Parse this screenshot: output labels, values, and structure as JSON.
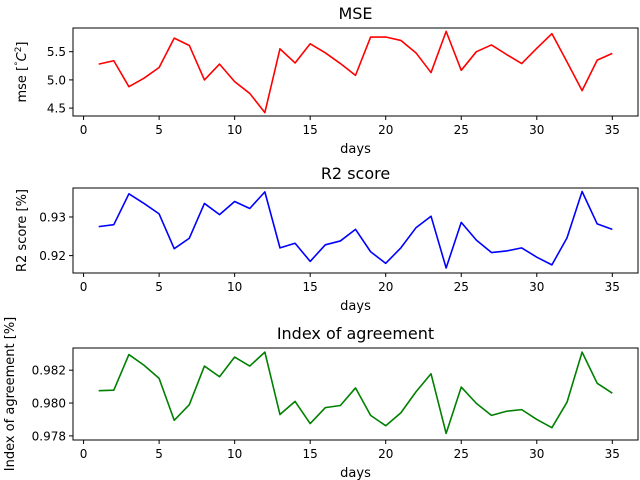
{
  "chart_data": [
    {
      "type": "line",
      "title": "MSE",
      "xlabel": "days",
      "ylabel": "mse [$^\\circ C^2$]",
      "ylabel_parts": {
        "text": "mse [",
        "degree": "°",
        "symbol": "C",
        "power": "2",
        "close": "]"
      },
      "color": "#ff0000",
      "xlim": [
        -0.7,
        36.7
      ],
      "ylim": [
        4.36,
        5.92
      ],
      "xticks": [
        0,
        5,
        10,
        15,
        20,
        25,
        30,
        35
      ],
      "yticks": [
        4.5,
        5.0,
        5.5
      ],
      "ytick_labels": [
        "4.5",
        "5.0",
        "5.5"
      ],
      "x": [
        1,
        2,
        3,
        4,
        5,
        6,
        7,
        8,
        9,
        10,
        11,
        12,
        13,
        14,
        15,
        16,
        17,
        18,
        19,
        20,
        21,
        22,
        23,
        24,
        25,
        26,
        27,
        28,
        29,
        30,
        31,
        32,
        33,
        34,
        35
      ],
      "values": [
        5.28,
        5.34,
        4.88,
        5.03,
        5.22,
        5.74,
        5.61,
        5.0,
        5.28,
        4.97,
        4.76,
        4.42,
        5.55,
        5.3,
        5.64,
        5.48,
        5.29,
        5.08,
        5.76,
        5.76,
        5.7,
        5.48,
        5.13,
        5.86,
        5.17,
        5.5,
        5.62,
        5.45,
        5.29,
        5.56,
        5.82,
        5.32,
        4.81,
        5.35,
        5.47
      ]
    },
    {
      "type": "line",
      "title": "R2 score",
      "xlabel": "days",
      "ylabel": "R2 score [%]",
      "color": "#0000ff",
      "xlim": [
        -0.7,
        36.7
      ],
      "ylim": [
        0.9155,
        0.9375
      ],
      "xticks": [
        0,
        5,
        10,
        15,
        20,
        25,
        30,
        35
      ],
      "yticks": [
        0.92,
        0.93
      ],
      "ytick_labels": [
        "0.92",
        "0.93"
      ],
      "x": [
        1,
        2,
        3,
        4,
        5,
        6,
        7,
        8,
        9,
        10,
        11,
        12,
        13,
        14,
        15,
        16,
        17,
        18,
        19,
        20,
        21,
        22,
        23,
        24,
        25,
        26,
        27,
        28,
        29,
        30,
        31,
        32,
        33,
        34,
        35
      ],
      "values": [
        0.9275,
        0.928,
        0.936,
        0.9335,
        0.9308,
        0.9218,
        0.9245,
        0.9335,
        0.9306,
        0.934,
        0.9322,
        0.9365,
        0.922,
        0.9232,
        0.9185,
        0.9228,
        0.9238,
        0.9268,
        0.921,
        0.918,
        0.922,
        0.9272,
        0.9302,
        0.9168,
        0.9286,
        0.924,
        0.9208,
        0.9212,
        0.922,
        0.9196,
        0.9176,
        0.9246,
        0.9366,
        0.9282,
        0.9268
      ]
    },
    {
      "type": "line",
      "title": "Index of agreement",
      "xlabel": "days",
      "ylabel": "Index of agreement [%]",
      "color": "#008000",
      "xlim": [
        -0.7,
        36.7
      ],
      "ylim": [
        0.97775,
        0.98335
      ],
      "xticks": [
        0,
        5,
        10,
        15,
        20,
        25,
        30,
        35
      ],
      "yticks": [
        0.978,
        0.98,
        0.982
      ],
      "ytick_labels": [
        "0.978",
        "0.980",
        "0.982"
      ],
      "x": [
        1,
        2,
        3,
        4,
        5,
        6,
        7,
        8,
        9,
        10,
        11,
        12,
        13,
        14,
        15,
        16,
        17,
        18,
        19,
        20,
        21,
        22,
        23,
        24,
        25,
        26,
        27,
        28,
        29,
        30,
        31,
        32,
        33,
        34,
        35
      ],
      "values": [
        0.98075,
        0.98078,
        0.98295,
        0.9823,
        0.9815,
        0.97895,
        0.9799,
        0.98225,
        0.9816,
        0.9828,
        0.98225,
        0.9831,
        0.9793,
        0.9801,
        0.97875,
        0.97972,
        0.97985,
        0.98092,
        0.97925,
        0.97862,
        0.9794,
        0.98068,
        0.98178,
        0.97815,
        0.98097,
        0.97998,
        0.97925,
        0.9795,
        0.9796,
        0.979,
        0.9785,
        0.98005,
        0.9831,
        0.9812,
        0.9806
      ]
    }
  ]
}
